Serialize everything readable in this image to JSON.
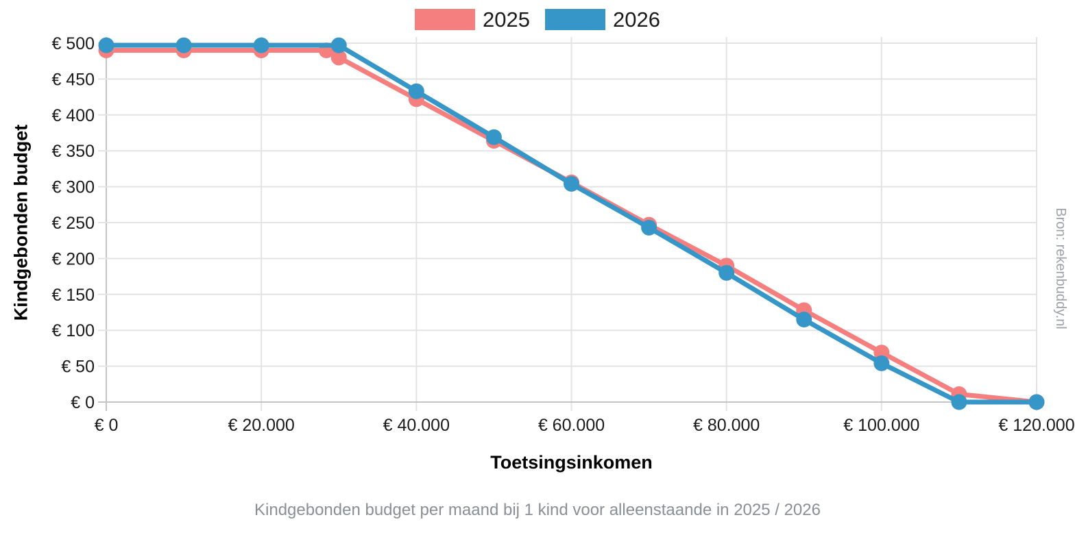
{
  "legend": {
    "items": [
      {
        "label": "2025",
        "color": "#f57f7f"
      },
      {
        "label": "2026",
        "color": "#3696c7"
      }
    ]
  },
  "axes": {
    "y_title": "Kindgebonden budget",
    "x_title": "Toetsingsinkomen",
    "y_ticks": [
      {
        "label": "€ 0",
        "value": 0
      },
      {
        "label": "€ 50",
        "value": 50
      },
      {
        "label": "€ 100",
        "value": 100
      },
      {
        "label": "€ 150",
        "value": 150
      },
      {
        "label": "€ 200",
        "value": 200
      },
      {
        "label": "€ 250",
        "value": 250
      },
      {
        "label": "€ 300",
        "value": 300
      },
      {
        "label": "€ 350",
        "value": 350
      },
      {
        "label": "€ 400",
        "value": 400
      },
      {
        "label": "€ 450",
        "value": 450
      },
      {
        "label": "€ 500",
        "value": 500
      }
    ],
    "x_ticks": [
      {
        "label": "€ 0",
        "value": 0
      },
      {
        "label": "€ 20.000",
        "value": 20000
      },
      {
        "label": "€ 40.000",
        "value": 40000
      },
      {
        "label": "€ 60.000",
        "value": 60000
      },
      {
        "label": "€ 80.000",
        "value": 80000
      },
      {
        "label": "€ 100.000",
        "value": 100000
      },
      {
        "label": "€ 120.000",
        "value": 120000
      }
    ]
  },
  "caption": "Kindgebonden budget per maand bij 1 kind voor alleenstaande in 2025 / 2026",
  "source": "Bron: rekenbuddy.nl",
  "colors": {
    "grid": "#e3e3e3",
    "axis": "#c4c4c4",
    "tick_text": "#1a1a1a"
  },
  "chart_data": {
    "type": "line",
    "title": "Kindgebonden budget per maand bij 1 kind voor alleenstaande in 2025 / 2026",
    "xlabel": "Toetsingsinkomen",
    "ylabel": "Kindgebonden budget",
    "xlim": [
      0,
      120000
    ],
    "ylim": [
      0,
      500
    ],
    "grid": true,
    "legend_position": "top",
    "series": [
      {
        "name": "2025",
        "color": "#f57f7f",
        "points": [
          [
            0,
            490
          ],
          [
            10000,
            490
          ],
          [
            20000,
            490
          ],
          [
            28406,
            490
          ],
          [
            30000,
            480
          ],
          [
            40000,
            422
          ],
          [
            50000,
            364
          ],
          [
            60000,
            306
          ],
          [
            70000,
            247
          ],
          [
            80000,
            190
          ],
          [
            90000,
            128
          ],
          [
            100000,
            69
          ],
          [
            110000,
            11
          ],
          [
            120000,
            0
          ]
        ]
      },
      {
        "name": "2026",
        "color": "#3696c7",
        "points": [
          [
            0,
            497
          ],
          [
            10000,
            497
          ],
          [
            20000,
            497
          ],
          [
            30000,
            497
          ],
          [
            40000,
            433
          ],
          [
            50000,
            369
          ],
          [
            60000,
            304
          ],
          [
            70000,
            243
          ],
          [
            80000,
            180
          ],
          [
            90000,
            115
          ],
          [
            100000,
            54
          ],
          [
            110000,
            0
          ],
          [
            120000,
            0
          ]
        ]
      }
    ]
  }
}
